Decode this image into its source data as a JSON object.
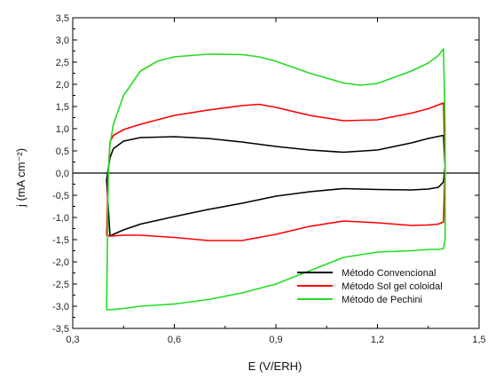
{
  "chart_data": {
    "type": "line",
    "title": "",
    "xlabel": "E (V/ERH)",
    "ylabel": "j (mA cm⁻²)",
    "xlim": [
      0.3,
      1.5
    ],
    "ylim": [
      -3.5,
      3.5
    ],
    "x_ticks": [
      "0,3",
      "0,6",
      "0,9",
      "1,2",
      "1,5"
    ],
    "y_ticks": [
      "-3,5",
      "-3,0",
      "-2,5",
      "-2,0",
      "-1,5",
      "-1,0",
      "-0,5",
      "0,0",
      "0,5",
      "1,0",
      "1,5",
      "2,0",
      "2,5",
      "3,0",
      "3,5"
    ],
    "zero_line": 0,
    "legend_position": "bottom-right",
    "series": [
      {
        "name": "Método Convencional",
        "color": "#000000",
        "x": [
          0.4,
          0.405,
          0.41,
          0.42,
          0.45,
          0.5,
          0.6,
          0.7,
          0.8,
          0.9,
          1.0,
          1.1,
          1.2,
          1.3,
          1.35,
          1.395,
          1.4,
          1.395,
          1.38,
          1.35,
          1.3,
          1.2,
          1.1,
          1.0,
          0.9,
          0.8,
          0.7,
          0.6,
          0.5,
          0.45,
          0.42,
          0.41
        ],
        "y": [
          -0.15,
          0.1,
          0.35,
          0.55,
          0.72,
          0.8,
          0.82,
          0.78,
          0.7,
          0.6,
          0.52,
          0.47,
          0.52,
          0.68,
          0.78,
          0.85,
          0.15,
          -0.2,
          -0.32,
          -0.36,
          -0.38,
          -0.37,
          -0.35,
          -0.42,
          -0.52,
          -0.68,
          -0.82,
          -0.98,
          -1.15,
          -1.28,
          -1.38,
          -1.42
        ]
      },
      {
        "name": "Método Sol gel coloidal",
        "color": "#ff0000",
        "x": [
          0.4,
          0.405,
          0.41,
          0.42,
          0.45,
          0.5,
          0.6,
          0.7,
          0.8,
          0.85,
          0.9,
          1.0,
          1.1,
          1.2,
          1.3,
          1.35,
          1.395,
          1.4,
          1.395,
          1.38,
          1.35,
          1.3,
          1.2,
          1.1,
          1.0,
          0.9,
          0.8,
          0.7,
          0.6,
          0.5,
          0.45,
          0.41
        ],
        "y": [
          -1.4,
          0.0,
          0.7,
          0.85,
          0.98,
          1.1,
          1.3,
          1.42,
          1.52,
          1.55,
          1.48,
          1.3,
          1.18,
          1.2,
          1.35,
          1.45,
          1.58,
          0.2,
          -1.1,
          -1.15,
          -1.17,
          -1.18,
          -1.12,
          -1.08,
          -1.2,
          -1.38,
          -1.52,
          -1.52,
          -1.45,
          -1.4,
          -1.4,
          -1.42
        ]
      },
      {
        "name": "Método de Pechini",
        "color": "#22dd22",
        "x": [
          0.4,
          0.405,
          0.41,
          0.42,
          0.45,
          0.5,
          0.55,
          0.6,
          0.7,
          0.8,
          0.85,
          0.9,
          1.0,
          1.1,
          1.15,
          1.2,
          1.3,
          1.35,
          1.38,
          1.395,
          1.4,
          1.4,
          1.395,
          1.38,
          1.35,
          1.3,
          1.2,
          1.1,
          1.0,
          0.9,
          0.8,
          0.7,
          0.6,
          0.5,
          0.45,
          0.41,
          0.4
        ],
        "y": [
          -3.0,
          0.0,
          0.65,
          1.1,
          1.75,
          2.3,
          2.52,
          2.62,
          2.68,
          2.67,
          2.62,
          2.52,
          2.25,
          2.03,
          1.98,
          2.02,
          2.3,
          2.48,
          2.65,
          2.8,
          1.0,
          -1.5,
          -1.7,
          -1.72,
          -1.72,
          -1.75,
          -1.78,
          -1.9,
          -2.2,
          -2.5,
          -2.7,
          -2.85,
          -2.95,
          -3.0,
          -3.05,
          -3.08,
          -3.08
        ]
      }
    ]
  }
}
